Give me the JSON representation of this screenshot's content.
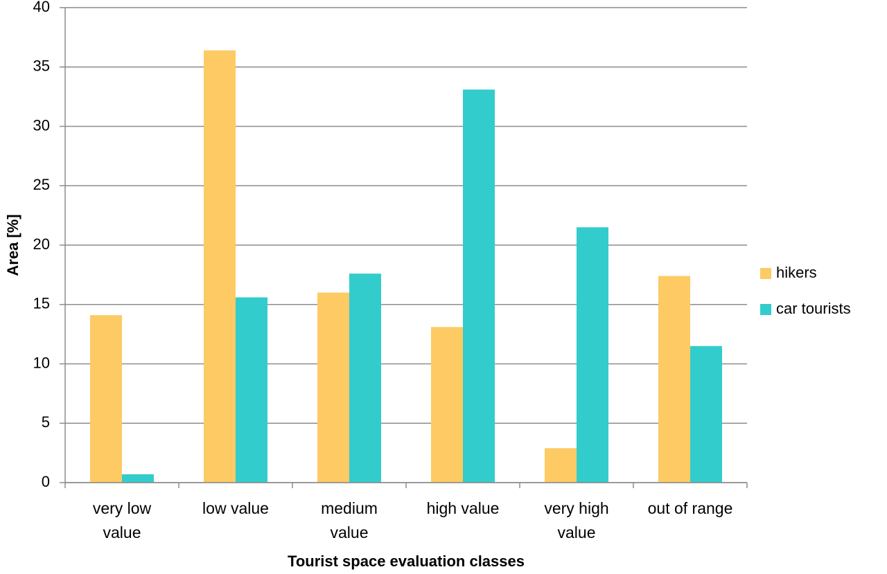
{
  "chart_data": {
    "type": "bar",
    "y_label": "Area [%]",
    "x_label": "Tourist space evaluation classes",
    "categories": [
      "very low value",
      "low value",
      "medium value",
      "high value",
      "very high value",
      "out of range"
    ],
    "series": [
      {
        "name": "hikers",
        "color": "#fdca64",
        "values": [
          14.1,
          36.4,
          16.0,
          13.1,
          2.9,
          17.4
        ]
      },
      {
        "name": "car tourists",
        "color": "#33cccc",
        "values": [
          0.7,
          15.6,
          17.6,
          33.1,
          21.5,
          11.5
        ]
      }
    ],
    "ylim": [
      0,
      40
    ],
    "yticks": [
      0,
      5,
      10,
      15,
      20,
      25,
      30,
      35,
      40
    ],
    "grid": true,
    "legend": "right"
  }
}
